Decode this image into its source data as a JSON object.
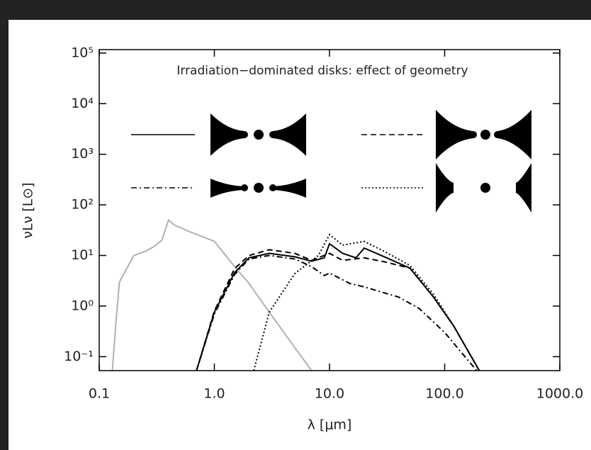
{
  "chart_data": {
    "type": "line",
    "title": "Irradiation−dominated disks: effect of geometry",
    "x_label": "λ [μm]",
    "y_label": "νLν [L⊙]",
    "xlog": true,
    "ylog": true,
    "xlim": [
      0.1,
      1000
    ],
    "ylim": [
      0.053,
      117000
    ],
    "xticks": [
      0.1,
      {
        "value": 1,
        "label": "1.0"
      },
      {
        "value": 10,
        "label": "10.0"
      },
      {
        "value": 100,
        "label": "100.0"
      },
      {
        "value": 1000,
        "label": "1000.0"
      }
    ],
    "yticks": [
      {
        "value": 0.1,
        "label": "10⁻¹"
      },
      {
        "value": 1,
        "label": "10⁰"
      },
      {
        "value": 10,
        "label": "10¹"
      },
      {
        "value": 100,
        "label": "10²"
      },
      {
        "value": 1000,
        "label": "10³"
      },
      {
        "value": 10000,
        "label": "10⁴"
      },
      {
        "value": 100000,
        "label": "10⁵"
      }
    ],
    "series": [
      {
        "color": "#b0b0b0",
        "linestyle": "solid",
        "x": [
          0.13,
          0.14,
          0.15,
          0.2,
          0.25,
          0.3,
          0.35,
          0.4,
          0.45,
          0.6,
          1.0,
          1.5,
          2.0,
          3.0,
          5.0,
          7.0
        ],
        "values": [
          0.053,
          0.5,
          3,
          10,
          12,
          15,
          20,
          50,
          40,
          30,
          19,
          6,
          2.8,
          0.76,
          0.15,
          0.053
        ]
      },
      {
        "color": "#000000",
        "linestyle": "solid",
        "x": [
          0.7,
          1.0,
          1.5,
          2,
          3,
          5,
          7,
          9,
          10,
          13,
          17,
          20,
          30,
          50,
          80,
          120,
          200
        ],
        "values": [
          0.053,
          0.76,
          4.6,
          9,
          11,
          9.4,
          7.7,
          9,
          17,
          11,
          9,
          14,
          9.4,
          5.6,
          1.5,
          0.4,
          0.053
        ]
      },
      {
        "color": "#000000",
        "linestyle": "dashed",
        "x": [
          0.7,
          1.0,
          1.5,
          2,
          3,
          5,
          7,
          10,
          13,
          20,
          30,
          50,
          80,
          120,
          200
        ],
        "values": [
          0.053,
          0.8,
          5.5,
          10,
          13,
          11,
          8,
          11,
          8,
          9,
          7.5,
          5.6,
          1.5,
          0.4,
          0.053
        ]
      },
      {
        "color": "#000000",
        "linestyle": "dashdot",
        "x": [
          0.7,
          1.0,
          1.5,
          2,
          3,
          5,
          7,
          9,
          10,
          15,
          20,
          40,
          60,
          100,
          150,
          190
        ],
        "values": [
          0.053,
          0.7,
          4.2,
          8.5,
          10,
          8.5,
          6,
          4,
          4.5,
          2.8,
          2.4,
          1.5,
          0.9,
          0.3,
          0.1,
          0.053
        ]
      },
      {
        "color": "#000000",
        "linestyle": "dotted",
        "x": [
          2.2,
          3,
          5,
          8,
          10,
          13,
          20,
          30,
          50,
          80,
          120,
          200
        ],
        "values": [
          0.053,
          0.76,
          4.4,
          10,
          26,
          16,
          19,
          12,
          6.3,
          1.7,
          0.4,
          0.053
        ]
      }
    ]
  }
}
